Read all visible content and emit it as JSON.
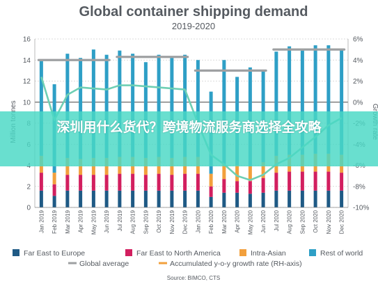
{
  "chart_data": {
    "type": "bar",
    "title": "Global container shipping demand",
    "subtitle": "2019-2020",
    "ylabel": "Million tonnes",
    "y2label": "Growth rate",
    "ylim": [
      0,
      16
    ],
    "y2lim": [
      -10,
      6
    ],
    "yticks": [
      "0",
      "2",
      "4",
      "6",
      "8",
      "10",
      "12",
      "14",
      "16"
    ],
    "y2ticks": [
      "-10%",
      "-8%",
      "-6%",
      "-4%",
      "-2%",
      "0%",
      "2%",
      "4%",
      "6%"
    ],
    "categories": [
      "Jan 2019",
      "Feb 2019",
      "Mar 2019",
      "Apr 2019",
      "May 2019",
      "Jun 2019",
      "Jul 2019",
      "Aug 2019",
      "Sep 2019",
      "Oct 2019",
      "Nov 2019",
      "Dec 2019",
      "Jan 2020",
      "Feb 2020",
      "Mar 2020",
      "Apr 2020",
      "May 2020",
      "Jun 2020",
      "Jul 2020",
      "Aug 2020",
      "Sep 2020",
      "Oct 2020",
      "Nov 2020",
      "Dec 2020"
    ],
    "series": [
      {
        "name": "Far East to Europe",
        "color": "#1f5a85",
        "values": [
          1.6,
          1.1,
          1.6,
          1.6,
          1.6,
          1.6,
          1.6,
          1.6,
          1.6,
          1.6,
          1.6,
          1.6,
          1.6,
          1.0,
          1.4,
          1.4,
          1.3,
          1.4,
          1.6,
          1.6,
          1.6,
          1.6,
          1.6,
          1.6
        ]
      },
      {
        "name": "Far East to North America",
        "color": "#d21f5f",
        "values": [
          1.7,
          1.1,
          1.5,
          1.5,
          1.5,
          1.5,
          1.6,
          1.6,
          1.5,
          1.6,
          1.5,
          1.6,
          1.6,
          1.0,
          1.3,
          1.1,
          1.2,
          1.4,
          1.7,
          1.8,
          1.8,
          1.8,
          1.8,
          1.7
        ]
      },
      {
        "name": "Intra-Asian",
        "color": "#f2a03d",
        "values": [
          1.6,
          1.1,
          1.6,
          1.5,
          1.6,
          1.6,
          1.6,
          1.6,
          1.6,
          1.6,
          1.6,
          1.6,
          1.6,
          1.2,
          1.4,
          1.5,
          1.4,
          1.5,
          1.6,
          1.6,
          1.6,
          1.7,
          1.7,
          1.7
        ]
      },
      {
        "name": "Rest of world",
        "color": "#2e9fc6",
        "values": [
          9.0,
          8.4,
          9.9,
          9.6,
          10.3,
          9.8,
          10.1,
          9.8,
          9.1,
          9.7,
          9.5,
          9.7,
          9.2,
          7.8,
          9.9,
          8.4,
          9.4,
          8.7,
          9.9,
          10.3,
          9.9,
          10.3,
          10.3,
          10.1
        ]
      }
    ],
    "lines": [
      {
        "name": "Global average",
        "color": "#9ea0a2",
        "axis": "left",
        "segments": [
          {
            "from": 0,
            "to": 5,
            "value": 14.0
          },
          {
            "from": 6,
            "to": 11,
            "value": 14.3
          },
          {
            "from": 12,
            "to": 17,
            "value": 13.0
          },
          {
            "from": 18,
            "to": 23,
            "value": 15.0
          }
        ]
      },
      {
        "name": "Accumulated y-o-y growth rate (RH-axis)",
        "color": "#6ecfb4",
        "axis": "right",
        "values": [
          2.4,
          -1.7,
          0.7,
          1.4,
          1.3,
          1.2,
          1.6,
          1.6,
          1.5,
          1.4,
          1.3,
          1.2,
          -2.0,
          -5.0,
          -5.9,
          -7.0,
          -7.4,
          -6.9,
          -5.9,
          -5.3,
          -4.3,
          -3.3,
          -2.2,
          -1.5
        ]
      }
    ],
    "legend": [
      "Far East to Europe",
      "Far East to North America",
      "Intra-Asian",
      "Rest of world",
      "Global average",
      "Accumulated y-o-y growth rate (RH-axis)"
    ],
    "legend_position": "bottom",
    "grid": true,
    "source": "Source: BIMCO, CTS"
  },
  "overlay": {
    "text": "深圳用什么货代？跨境物流服务商选择全攻略"
  }
}
